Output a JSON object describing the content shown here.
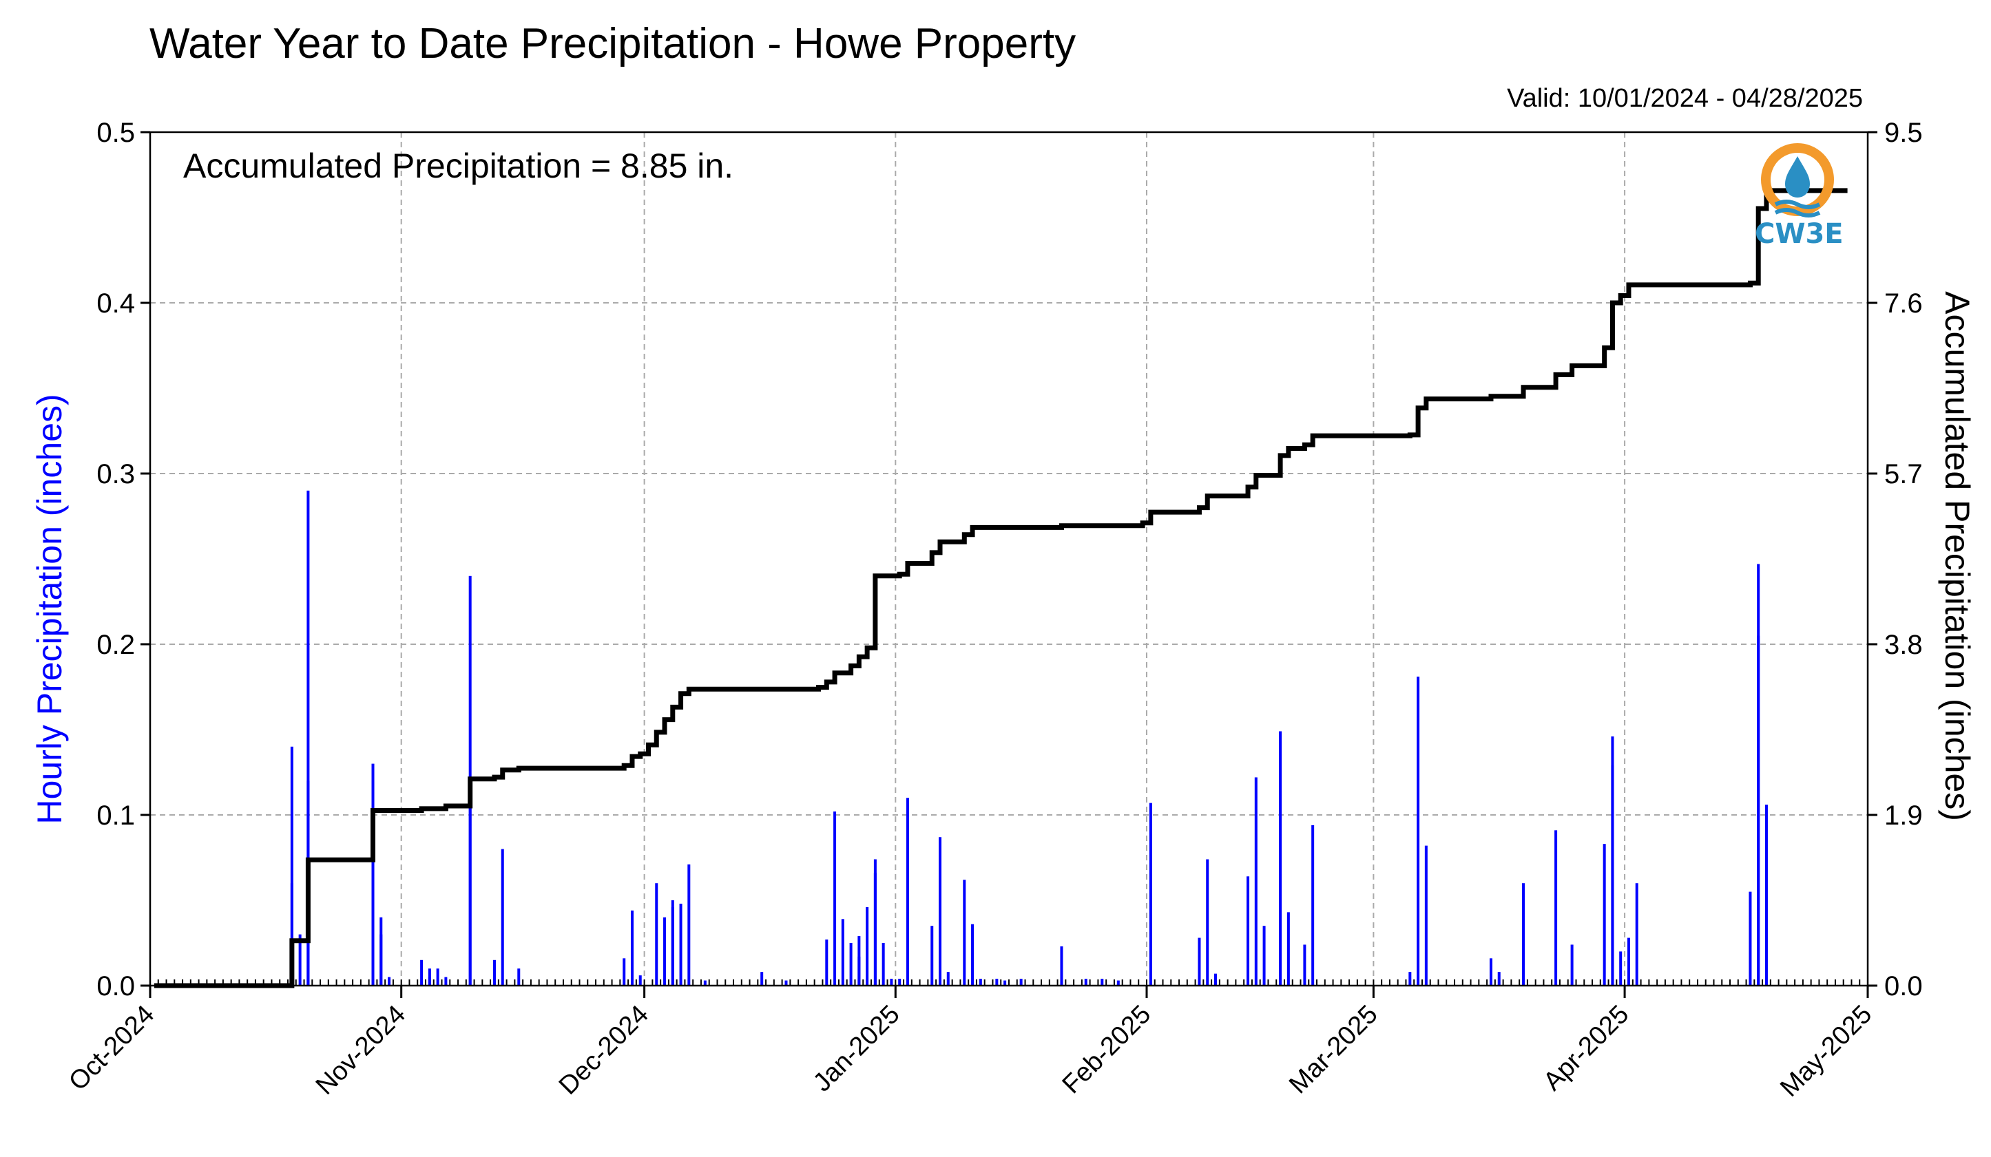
{
  "title": "Water Year to Date Precipitation - Howe Property",
  "valid_range": "Valid: 10/01/2024 - 04/28/2025",
  "accumulated_label": "Accumulated Precipitation = 8.85 in.",
  "logo_text": "CW3E",
  "colors": {
    "hourly_bars": "#0000ff",
    "accumulated_line": "#000000",
    "grid": "#aaaaaa",
    "logo_orange": "#f39a2c",
    "logo_blue": "#2a8fc4"
  },
  "chart_data": {
    "type": "bar",
    "xlabel": "",
    "ylabel": "Hourly Precipitation (inches)",
    "y2label": "Accumulated Precipitation (inches)",
    "xlim": [
      "2024-10-01",
      "2025-05-01"
    ],
    "ylim": [
      0,
      0.5
    ],
    "y2lim": [
      0,
      9.5
    ],
    "grid": true,
    "x_ticks": [
      "Oct-2024",
      "Nov-2024",
      "Dec-2024",
      "Jan-2025",
      "Feb-2025",
      "Mar-2025",
      "Apr-2025",
      "May-2025"
    ],
    "x_tick_dates": [
      "2024-10-01",
      "2024-11-01",
      "2024-12-01",
      "2025-01-01",
      "2025-02-01",
      "2025-03-01",
      "2025-04-01",
      "2025-05-01"
    ],
    "y_ticks": [
      "0.0",
      "0.1",
      "0.2",
      "0.3",
      "0.4",
      "0.5"
    ],
    "y2_ticks": [
      "0.0",
      "1.9",
      "3.8",
      "5.7",
      "7.6",
      "9.5"
    ],
    "series": [
      {
        "name": "Hourly Precipitation",
        "kind": "bar",
        "axis": "left",
        "points": [
          [
            "2024-10-18",
            0.01
          ],
          [
            "2024-10-18",
            0.06
          ],
          [
            "2024-10-18",
            0.14
          ],
          [
            "2024-10-19",
            0.03
          ],
          [
            "2024-10-20",
            0.12
          ],
          [
            "2024-10-20",
            0.29
          ],
          [
            "2024-10-20",
            0.07
          ],
          [
            "2024-10-28",
            0.13
          ],
          [
            "2024-10-28",
            0.12
          ],
          [
            "2024-10-29",
            0.04
          ],
          [
            "2024-10-29",
            0.03
          ],
          [
            "2024-10-30",
            0.005
          ],
          [
            "2024-11-03",
            0.015
          ],
          [
            "2024-11-04",
            0.01
          ],
          [
            "2024-11-04",
            0.005
          ],
          [
            "2024-11-05",
            0.01
          ],
          [
            "2024-11-06",
            0.005
          ],
          [
            "2024-11-09",
            0.24
          ],
          [
            "2024-11-09",
            0.12
          ],
          [
            "2024-11-12",
            0.015
          ],
          [
            "2024-11-13",
            0.08
          ],
          [
            "2024-11-15",
            0.01
          ],
          [
            "2024-11-28",
            0.016
          ],
          [
            "2024-11-29",
            0.044
          ],
          [
            "2024-11-30",
            0.006
          ],
          [
            "2024-12-02",
            0.06
          ],
          [
            "2024-12-03",
            0.04
          ],
          [
            "2024-12-04",
            0.05
          ],
          [
            "2024-12-04",
            0.046
          ],
          [
            "2024-12-05",
            0.048
          ],
          [
            "2024-12-06",
            0.071
          ],
          [
            "2024-12-08",
            0.003
          ],
          [
            "2024-12-15",
            0.008
          ],
          [
            "2024-12-18",
            0.003
          ],
          [
            "2024-12-23",
            0.027
          ],
          [
            "2024-12-24",
            0.102
          ],
          [
            "2024-12-25",
            0.039
          ],
          [
            "2024-12-26",
            0.025
          ],
          [
            "2024-12-27",
            0.017
          ],
          [
            "2024-12-27",
            0.029
          ],
          [
            "2024-12-28",
            0.046
          ],
          [
            "2024-12-29",
            0.066
          ],
          [
            "2024-12-29",
            0.074
          ],
          [
            "2024-12-30",
            0.025
          ],
          [
            "2024-12-31",
            0.004
          ],
          [
            "2025-01-01",
            0.004
          ],
          [
            "2025-01-02",
            0.11
          ],
          [
            "2025-01-05",
            0.035
          ],
          [
            "2025-01-06",
            0.087
          ],
          [
            "2025-01-07",
            0.008
          ],
          [
            "2025-01-09",
            0.062
          ],
          [
            "2025-01-10",
            0.036
          ],
          [
            "2025-01-11",
            0.004
          ],
          [
            "2025-01-13",
            0.004
          ],
          [
            "2025-01-14",
            0.003
          ],
          [
            "2025-01-16",
            0.004
          ],
          [
            "2025-01-21",
            0.023
          ],
          [
            "2025-01-24",
            0.004
          ],
          [
            "2025-01-26",
            0.004
          ],
          [
            "2025-01-28",
            0.003
          ],
          [
            "2025-02-01",
            0.107
          ],
          [
            "2025-02-07",
            0.028
          ],
          [
            "2025-02-08",
            0.074
          ],
          [
            "2025-02-09",
            0.007
          ],
          [
            "2025-02-13",
            0.064
          ],
          [
            "2025-02-14",
            0.122
          ],
          [
            "2025-02-15",
            0.035
          ],
          [
            "2025-02-17",
            0.149
          ],
          [
            "2025-02-18",
            0.043
          ],
          [
            "2025-02-20",
            0.024
          ],
          [
            "2025-02-21",
            0.094
          ],
          [
            "2025-03-05",
            0.008
          ],
          [
            "2025-03-06",
            0.181
          ],
          [
            "2025-03-07",
            0.082
          ],
          [
            "2025-03-15",
            0.016
          ],
          [
            "2025-03-16",
            0.008
          ],
          [
            "2025-03-19",
            0.06
          ],
          [
            "2025-03-23",
            0.091
          ],
          [
            "2025-03-25",
            0.024
          ],
          [
            "2025-03-29",
            0.083
          ],
          [
            "2025-03-30",
            0.129
          ],
          [
            "2025-03-30",
            0.146
          ],
          [
            "2025-03-31",
            0.02
          ],
          [
            "2025-04-01",
            0.028
          ],
          [
            "2025-04-02",
            0.06
          ],
          [
            "2025-04-16",
            0.055
          ],
          [
            "2025-04-17",
            0.247
          ],
          [
            "2025-04-17",
            0.205
          ],
          [
            "2025-04-18",
            0.106
          ]
        ]
      },
      {
        "name": "Accumulated Precipitation",
        "kind": "step-line",
        "axis": "right",
        "points": [
          [
            "2024-10-01",
            0.0
          ],
          [
            "2024-10-18",
            0.0
          ],
          [
            "2024-10-18",
            0.5
          ],
          [
            "2024-10-20",
            0.5
          ],
          [
            "2024-10-20",
            1.4
          ],
          [
            "2024-10-28",
            1.4
          ],
          [
            "2024-10-28",
            1.95
          ],
          [
            "2024-11-03",
            1.97
          ],
          [
            "2024-11-06",
            2.0
          ],
          [
            "2024-11-09",
            2.02
          ],
          [
            "2024-11-09",
            2.3
          ],
          [
            "2024-11-12",
            2.32
          ],
          [
            "2024-11-13",
            2.4
          ],
          [
            "2024-11-15",
            2.42
          ],
          [
            "2024-11-28",
            2.45
          ],
          [
            "2024-11-29",
            2.55
          ],
          [
            "2024-11-30",
            2.58
          ],
          [
            "2024-12-01",
            2.68
          ],
          [
            "2024-12-02",
            2.82
          ],
          [
            "2024-12-03",
            2.96
          ],
          [
            "2024-12-04",
            3.1
          ],
          [
            "2024-12-05",
            3.25
          ],
          [
            "2024-12-06",
            3.3
          ],
          [
            "2024-12-22",
            3.32
          ],
          [
            "2024-12-23",
            3.38
          ],
          [
            "2024-12-24",
            3.48
          ],
          [
            "2024-12-26",
            3.56
          ],
          [
            "2024-12-27",
            3.66
          ],
          [
            "2024-12-28",
            3.76
          ],
          [
            "2024-12-29",
            4.2
          ],
          [
            "2024-12-29",
            4.56
          ],
          [
            "2025-01-01",
            4.58
          ],
          [
            "2025-01-02",
            4.7
          ],
          [
            "2025-01-05",
            4.82
          ],
          [
            "2025-01-06",
            4.94
          ],
          [
            "2025-01-09",
            5.02
          ],
          [
            "2025-01-10",
            5.1
          ],
          [
            "2025-01-21",
            5.12
          ],
          [
            "2025-01-31",
            5.15
          ],
          [
            "2025-02-01",
            5.27
          ],
          [
            "2025-02-07",
            5.32
          ],
          [
            "2025-02-08",
            5.45
          ],
          [
            "2025-02-13",
            5.55
          ],
          [
            "2025-02-14",
            5.68
          ],
          [
            "2025-02-17",
            5.9
          ],
          [
            "2025-02-18",
            5.98
          ],
          [
            "2025-02-20",
            6.02
          ],
          [
            "2025-02-21",
            6.12
          ],
          [
            "2025-03-05",
            6.13
          ],
          [
            "2025-03-06",
            6.43
          ],
          [
            "2025-03-07",
            6.53
          ],
          [
            "2025-03-15",
            6.56
          ],
          [
            "2025-03-19",
            6.66
          ],
          [
            "2025-03-23",
            6.8
          ],
          [
            "2025-03-25",
            6.9
          ],
          [
            "2025-03-29",
            7.1
          ],
          [
            "2025-03-30",
            7.6
          ],
          [
            "2025-03-31",
            7.68
          ],
          [
            "2025-04-01",
            7.8
          ],
          [
            "2025-04-16",
            7.82
          ],
          [
            "2025-04-17",
            8.2
          ],
          [
            "2025-04-17",
            8.65
          ],
          [
            "2025-04-18",
            8.85
          ],
          [
            "2025-04-28",
            8.85
          ]
        ]
      }
    ]
  }
}
